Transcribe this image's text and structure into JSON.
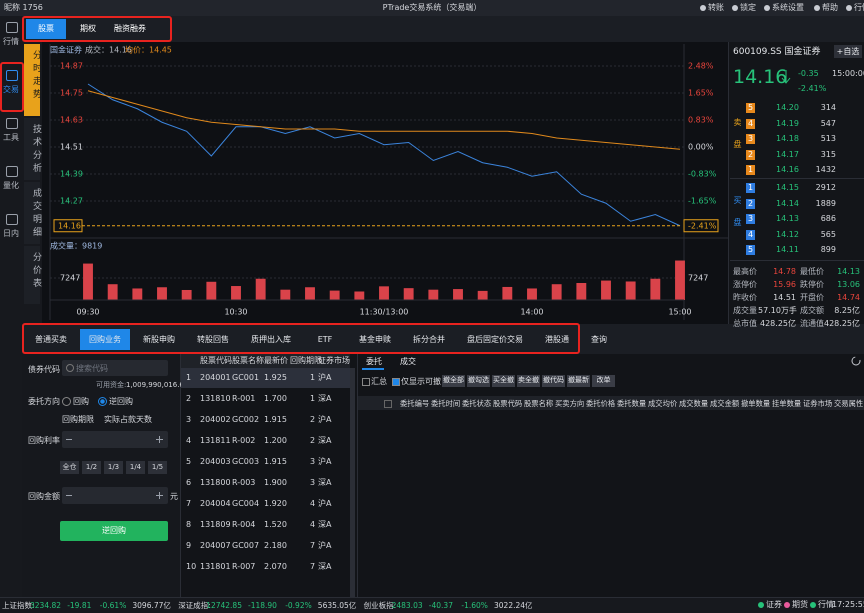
{
  "header": {
    "user": "昵称 1756",
    "title": "PTrade交易系统（交易端）",
    "menu": [
      "转账",
      "锁定",
      "系统设置",
      "帮助",
      "行情"
    ]
  },
  "sidebar": [
    "行情",
    "交易",
    "工具",
    "量化",
    "日内"
  ],
  "product_tabs": [
    "股票",
    "期权",
    "融资融券"
  ],
  "chart_tabs": [
    "分时走势",
    "技术分析",
    "成交明细",
    "分价表"
  ],
  "chart_data": [
    {
      "type": "line",
      "info": [
        "国金证券",
        "成交：14.16",
        "均价：14.45"
      ],
      "categories": [
        "09:30",
        null,
        null,
        null,
        null,
        null,
        "10:30",
        null,
        null,
        null,
        null,
        null,
        "11:30/13:00",
        null,
        null,
        null,
        null,
        null,
        "14:00",
        null,
        null,
        null,
        null,
        null,
        "15:00"
      ],
      "series": [
        {
          "color": "#3b84dc",
          "values": [
            14.79,
            14.72,
            14.68,
            14.62,
            14.58,
            14.47,
            14.6,
            14.6,
            14.57,
            14.6,
            14.55,
            14.57,
            14.52,
            14.53,
            14.45,
            14.49,
            14.44,
            14.42,
            14.38,
            14.4,
            14.3,
            14.26,
            14.18,
            14.21,
            14.16
          ]
        },
        {
          "color": "#e0891c",
          "values": [
            14.76,
            14.73,
            14.7,
            14.67,
            14.64,
            14.62,
            14.61,
            14.6,
            14.59,
            14.59,
            14.59,
            14.58,
            14.58,
            14.58,
            14.58,
            14.58,
            14.58,
            14.58,
            14.57,
            14.55,
            14.54,
            14.53,
            14.52,
            14.51,
            14.5
          ]
        }
      ],
      "ylim": [
        14.15,
        14.87
      ],
      "yticks": [
        14.87,
        14.75,
        14.63,
        14.51,
        14.39,
        14.27
      ],
      "y2lim": [
        -2.48,
        2.48
      ],
      "y2ticks": [
        {
          "value": 2.48,
          "label": "2.48%"
        },
        {
          "value": 1.65,
          "label": "1.65%"
        },
        {
          "value": 0.83,
          "label": "0.83%"
        },
        {
          "value": 0,
          "label": "0.00%"
        },
        {
          "value": -0.83,
          "label": "-0.83%"
        },
        {
          "value": -1.65,
          "label": "-1.65%"
        }
      ],
      "last_price": 14.16,
      "last_pct": {
        "value": -2.41,
        "label": "-2.41%"
      },
      "grid": true
    },
    {
      "type": "bar",
      "title": "成交量：9819",
      "color": "#d9434a",
      "values": [
        12000,
        5200,
        3800,
        4200,
        3300,
        6000,
        4600,
        7000,
        3400,
        4200,
        3100,
        2800,
        4500,
        3900,
        3400,
        3600,
        3000,
        4300,
        3800,
        5200,
        5600,
        6400,
        6100,
        7000,
        13000
      ],
      "ylim": [
        0,
        14494
      ],
      "yticks": [
        7247
      ]
    }
  ],
  "quote": {
    "code": "600109.SS 国金证券",
    "watch": "+自选",
    "price": "14.16",
    "change": "-0.35",
    "pct": "-2.41%",
    "time": "15:00:00",
    "sell_label": "卖盘",
    "buy_label": "买盘",
    "asks": [
      [
        "5",
        "14.20",
        "314"
      ],
      [
        "4",
        "14.19",
        "547"
      ],
      [
        "3",
        "14.18",
        "513"
      ],
      [
        "2",
        "14.17",
        "315"
      ],
      [
        "1",
        "14.16",
        "1432"
      ]
    ],
    "bids": [
      [
        "1",
        "14.15",
        "2912"
      ],
      [
        "2",
        "14.14",
        "1889"
      ],
      [
        "3",
        "14.13",
        "686"
      ],
      [
        "4",
        "14.12",
        "565"
      ],
      [
        "5",
        "14.11",
        "899"
      ]
    ],
    "stats": [
      [
        "最高价",
        "14.78",
        "最低价",
        "14.13"
      ],
      [
        "涨停价",
        "15.96",
        "跌停价",
        "13.06"
      ],
      [
        "昨收价",
        "14.51",
        "开盘价",
        "14.74"
      ],
      [
        "成交量",
        "57.10万手",
        "成交额",
        "8.25亿"
      ],
      [
        "总市值",
        "428.25亿",
        "流通值",
        "428.25亿"
      ]
    ]
  },
  "trade_tabs": [
    "普通买卖",
    "回购业务",
    "新股申购",
    "转股回售",
    "质押出入库",
    "ETF",
    "基金申赎",
    "拆分合并",
    "盘后固定价交易",
    "港股通",
    "查询"
  ],
  "form": {
    "code_label": "债券代码",
    "code_placeholder": "搜索代码",
    "available_label": "可用资金:",
    "available": "1,009,990,016.68",
    "direction_label": "委托方向",
    "directions": [
      "回购",
      "逆回购"
    ],
    "term_label": "回购期限",
    "days_label": "实际占款天数",
    "rate_label": "回购利率",
    "quick": [
      "全仓",
      "1/2",
      "1/3",
      "1/4",
      "1/5"
    ],
    "amount_label": "回购金额",
    "unit": "元",
    "submit": "逆回购"
  },
  "table": {
    "headers": [
      "股票代码",
      "股票名称",
      "最新价",
      "回购期限",
      "证券市场"
    ],
    "rows": [
      [
        "1",
        "204001",
        "GC001",
        "1.925",
        "1",
        "沪A"
      ],
      [
        "2",
        "131810",
        "R-001",
        "1.700",
        "1",
        "深A"
      ],
      [
        "3",
        "204002",
        "GC002",
        "1.915",
        "2",
        "沪A"
      ],
      [
        "4",
        "131811",
        "R-002",
        "1.200",
        "2",
        "深A"
      ],
      [
        "5",
        "204003",
        "GC003",
        "1.915",
        "3",
        "沪A"
      ],
      [
        "6",
        "131800",
        "R-003",
        "1.900",
        "3",
        "深A"
      ],
      [
        "7",
        "204004",
        "GC004",
        "1.920",
        "4",
        "沪A"
      ],
      [
        "8",
        "131809",
        "R-004",
        "1.520",
        "4",
        "深A"
      ],
      [
        "9",
        "204007",
        "GC007",
        "2.180",
        "7",
        "沪A"
      ],
      [
        "10",
        "131801",
        "R-007",
        "2.070",
        "7",
        "深A"
      ]
    ]
  },
  "orders": {
    "tabs": [
      "委托",
      "成交"
    ],
    "checks": [
      "汇总",
      "仅显示可撤"
    ],
    "buttons": [
      "撤全部",
      "撤勾选",
      "买全撤",
      "卖全撤",
      "撤代码",
      "撤最新",
      "改单"
    ],
    "headers": [
      "委托编号",
      "委托时间",
      "委托状态",
      "股票代码",
      "股票名称",
      "买卖方向",
      "委托价格",
      "委托数量",
      "成交均价",
      "成交数量",
      "成交金额",
      "撤单数量",
      "挂单数量",
      "证券市场",
      "交易属性"
    ]
  },
  "statusbar": {
    "indices": [
      [
        "上证指数:",
        "3234.82",
        "-19.81",
        "-0.61%",
        "3096.77亿"
      ],
      [
        "深证成指:",
        "12742.85",
        "-118.90",
        "-0.92%",
        "5635.05亿"
      ],
      [
        "创业板指:",
        "2483.03",
        "-40.37",
        "-1.60%",
        "3022.24亿"
      ]
    ],
    "status": [
      "证券",
      "期货",
      "行情"
    ],
    "clock": "17:25:55"
  }
}
